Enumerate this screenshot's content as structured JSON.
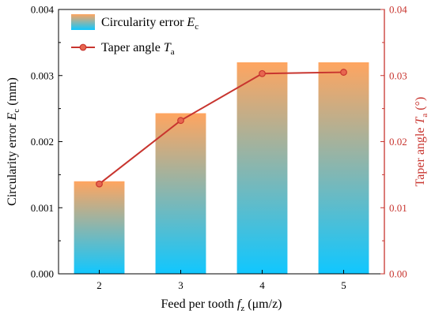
{
  "chart_data": {
    "type": "bar",
    "categories": [
      "2",
      "3",
      "4",
      "5"
    ],
    "xlabel": {
      "main": "Feed per tooth ",
      "var": "f",
      "sub": "z",
      "unit": " (μm/z)"
    },
    "y_left": {
      "label": {
        "main": "Circularity error ",
        "var": "E",
        "sub": "c",
        "unit": " (mm)"
      },
      "ylim": [
        0,
        0.004
      ],
      "ticks": [
        "0.000",
        "0.001",
        "0.002",
        "0.003",
        "0.004"
      ]
    },
    "y_right": {
      "label": {
        "main": "Taper angle ",
        "var": "T",
        "sub": "a",
        "unit": " (°)"
      },
      "ylim": [
        0,
        0.04
      ],
      "ticks": [
        "0.00",
        "0.01",
        "0.02",
        "0.03",
        "0.04"
      ]
    },
    "series": [
      {
        "name": {
          "main": "Circularity error ",
          "var": "E",
          "sub": "c"
        },
        "type": "bar",
        "axis": "left",
        "values": [
          0.0014,
          0.00243,
          0.0032,
          0.0032
        ]
      },
      {
        "name": {
          "main": "Taper angle ",
          "var": "T",
          "sub": "a"
        },
        "type": "line",
        "axis": "right",
        "values": [
          0.0136,
          0.0232,
          0.0303,
          0.0305
        ]
      }
    ],
    "legend_position": "top-left",
    "grid": false
  },
  "colors": {
    "bar_top": "#FFA560",
    "bar_bottom": "#10C7FF",
    "line": "#C8352F",
    "marker_fill": "#E7664F",
    "right_axis": "#C8352F",
    "axis": "#000000"
  }
}
